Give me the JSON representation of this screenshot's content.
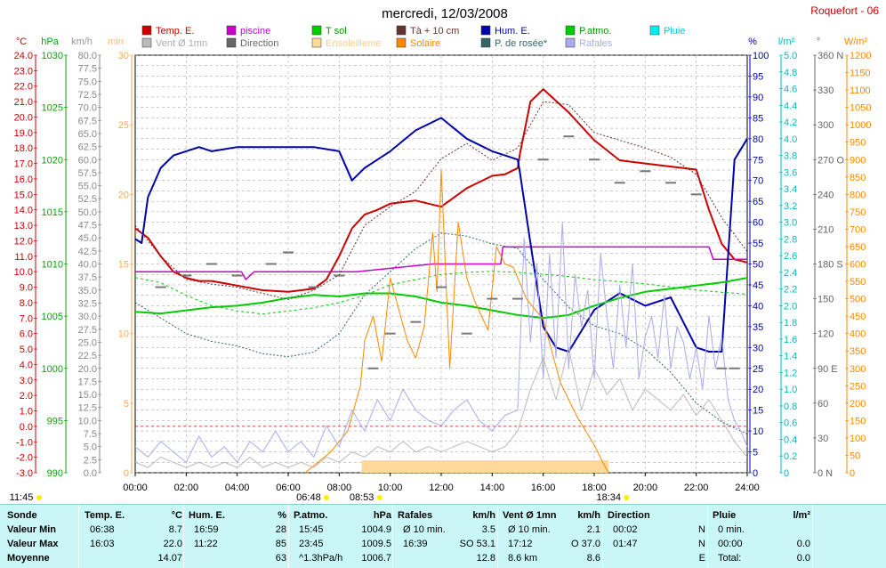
{
  "title": "mercredi, 12/03/2008",
  "station": "Roquefort - 06",
  "legend": [
    {
      "label": "Temp. E.",
      "color": "#cc0000"
    },
    {
      "label": "piscine",
      "color": "#cc00cc"
    },
    {
      "label": "T sol",
      "color": "#00cc00"
    },
    {
      "label": "Tà + 10 cm",
      "color": "#663333"
    },
    {
      "label": "Hum. E.",
      "color": "#0000aa"
    },
    {
      "label": "P.atmo.",
      "color": "#00cc00"
    },
    {
      "label": "Pluie",
      "color": "#00eeee"
    },
    {
      "label": "Vent Ø 1mn",
      "color": "#bbbbbb"
    },
    {
      "label": "Direction",
      "color": "#666666"
    },
    {
      "label": "Ensoleilleme",
      "color": "#ffd89a"
    },
    {
      "label": "Solaire",
      "color": "#ff8800"
    },
    {
      "label": "P. de rosée*",
      "color": "#336666"
    },
    {
      "label": "Rafales",
      "color": "#aaaaee"
    }
  ],
  "units": {
    "temp": "°C",
    "press": "hPa",
    "wind": "km/h",
    "sun": "min",
    "hum": "%",
    "rain": "l/m²",
    "dir": "°",
    "solar": "W/m²"
  },
  "chart_data": {
    "type": "line",
    "x_ticks": [
      "00:00",
      "02:00",
      "04:00",
      "06:00",
      "08:00",
      "10:00",
      "12:00",
      "14:00",
      "16:00",
      "18:00",
      "20:00",
      "22:00",
      "24:00"
    ],
    "axes": {
      "temp": {
        "min": -3.0,
        "max": 24.0,
        "step": 1.0,
        "color": "#cc0000"
      },
      "press": {
        "min": 990,
        "max": 1030,
        "step": 5,
        "color": "#00aa00"
      },
      "wind": {
        "min": 0,
        "max": 80,
        "step": 2.5,
        "color": "#888888"
      },
      "sun": {
        "min": 0,
        "max": 30,
        "step": 5,
        "color": "#ffaa44"
      },
      "hum": {
        "min": 0,
        "max": 100,
        "step": 5,
        "color": "#0000aa"
      },
      "rain": {
        "min": 0,
        "max": 5.0,
        "step": 0.2,
        "color": "#00bbbb"
      },
      "dir": {
        "min": 0,
        "max": 360,
        "step": 30,
        "color": "#666666",
        "labels": {
          "0": "0 N",
          "90": "90 E",
          "180": "180 S",
          "270": "270 O",
          "360": "360 N"
        }
      },
      "solar": {
        "min": 0,
        "max": 1200,
        "step": 50,
        "color": "#ff8800"
      }
    },
    "bottom_labels": [
      {
        "time": "11:45",
        "minute": -15
      },
      {
        "time": "06:48",
        "minute": 408
      },
      {
        "time": "08:53",
        "minute": 533
      },
      {
        "time": "18:34",
        "minute": 1114
      }
    ],
    "series": [
      {
        "name": "Temp. E.",
        "axis": "temp",
        "color": "#cc0000",
        "width": 2,
        "x": [
          0,
          30,
          60,
          90,
          120,
          150,
          180,
          240,
          300,
          360,
          420,
          450,
          480,
          510,
          540,
          570,
          600,
          660,
          720,
          780,
          840,
          870,
          900,
          905,
          930,
          960,
          1020,
          1080,
          1140,
          1200,
          1260,
          1320,
          1350,
          1380,
          1410,
          1440
        ],
        "y": [
          12.8,
          12.2,
          11.0,
          10.0,
          9.6,
          9.4,
          9.4,
          9.1,
          8.8,
          8.7,
          8.9,
          9.5,
          11.0,
          12.8,
          13.7,
          14.0,
          14.4,
          14.6,
          14.2,
          15.4,
          16.2,
          16.3,
          16.7,
          17.6,
          21.0,
          21.8,
          20.3,
          18.5,
          17.2,
          17.0,
          16.8,
          16.6,
          14.0,
          11.8,
          10.8,
          10.6
        ]
      },
      {
        "name": "piscine",
        "axis": "temp",
        "color": "#cc00cc",
        "width": 1.5,
        "x": [
          0,
          250,
          260,
          280,
          520,
          700,
          860,
          865,
          1000,
          1080,
          1350,
          1360,
          1440
        ],
        "y": [
          10.0,
          10.0,
          9.5,
          10.0,
          10.0,
          10.5,
          10.5,
          11.6,
          11.6,
          11.6,
          11.6,
          10.8,
          10.8
        ]
      },
      {
        "name": "Hum. E.",
        "axis": "hum",
        "color": "#0000aa",
        "width": 2,
        "x": [
          0,
          15,
          30,
          60,
          90,
          120,
          150,
          180,
          240,
          300,
          360,
          420,
          480,
          510,
          540,
          570,
          600,
          660,
          720,
          780,
          840,
          870,
          900,
          905,
          930,
          960,
          990,
          1020,
          1080,
          1140,
          1200,
          1260,
          1320,
          1350,
          1380,
          1410,
          1440
        ],
        "y": [
          56,
          55,
          66,
          73,
          76,
          77,
          78,
          77,
          78,
          78,
          78,
          78,
          77,
          70,
          73,
          75,
          77,
          82,
          85,
          80,
          77,
          76,
          75,
          72,
          55,
          35,
          30,
          29,
          39,
          43,
          40,
          42,
          30,
          29,
          29,
          75,
          80
        ]
      },
      {
        "name": "T sol",
        "axis": "temp",
        "color": "#00cc00",
        "width": 2,
        "x": [
          0,
          60,
          120,
          180,
          240,
          300,
          360,
          420,
          480,
          540,
          600,
          660,
          720,
          780,
          840,
          900,
          960,
          1020,
          1080,
          1140,
          1200,
          1260,
          1320,
          1380,
          1440
        ],
        "y": [
          7.4,
          7.3,
          7.5,
          7.7,
          7.8,
          8.0,
          8.3,
          8.5,
          8.4,
          8.6,
          8.6,
          8.4,
          8.0,
          7.8,
          7.5,
          7.2,
          7.0,
          7.2,
          7.8,
          8.3,
          8.7,
          8.9,
          9.1,
          9.3,
          9.6
        ]
      },
      {
        "name": "Tà + 10 cm",
        "axis": "temp",
        "color": "#663333",
        "width": 1,
        "dash": "2,2",
        "x": [
          0,
          60,
          120,
          180,
          240,
          300,
          360,
          420,
          480,
          540,
          600,
          660,
          720,
          780,
          840,
          900,
          960,
          1020,
          1080,
          1140,
          1200,
          1260,
          1320,
          1380,
          1440
        ],
        "y": [
          13.0,
          11.0,
          9.5,
          9.2,
          9.0,
          8.6,
          8.2,
          8.8,
          9.8,
          13.0,
          14.2,
          15.2,
          17.3,
          18.3,
          17.2,
          18.0,
          21.0,
          20.8,
          19.0,
          18.5,
          18.0,
          17.4,
          16.3,
          13.5,
          11.3
        ]
      },
      {
        "name": "P. de rosée*",
        "axis": "temp",
        "color": "#336666",
        "width": 1,
        "dash": "2,2",
        "x": [
          0,
          60,
          120,
          180,
          240,
          300,
          360,
          420,
          480,
          540,
          600,
          660,
          720,
          780,
          840,
          900,
          960,
          1020,
          1080,
          1140,
          1200,
          1260,
          1320,
          1380,
          1440
        ],
        "y": [
          8.0,
          7.0,
          6.0,
          5.5,
          5.2,
          4.7,
          4.5,
          4.8,
          6.0,
          8.5,
          10.0,
          11.5,
          12.5,
          12.3,
          11.8,
          11.5,
          9.5,
          7.7,
          6.5,
          6.0,
          5.0,
          3.5,
          1.5,
          0.3,
          -0.5
        ]
      },
      {
        "name": "P.atmo.",
        "axis": "press",
        "color": "#00cc00",
        "width": 1,
        "dash": "3,3",
        "x": [
          0,
          60,
          120,
          180,
          240,
          300,
          360,
          420,
          480,
          540,
          600,
          660,
          720,
          780,
          840,
          900,
          960,
          1020,
          1080,
          1140,
          1200,
          1260,
          1320,
          1380,
          1440
        ],
        "y": [
          1008.7,
          1008.2,
          1007.0,
          1006.0,
          1005.5,
          1005.2,
          1005.5,
          1005.8,
          1006.3,
          1007.0,
          1008.0,
          1008.5,
          1009.0,
          1009.2,
          1009.3,
          1009.2,
          1009.0,
          1008.8,
          1008.5,
          1008.3,
          1008.1,
          1007.8,
          1007.5,
          1007.3,
          1007.1
        ]
      },
      {
        "name": "Solaire",
        "axis": "solar",
        "color": "#ff8800",
        "width": 1,
        "x": [
          400,
          420,
          460,
          500,
          530,
          540,
          560,
          580,
          600,
          620,
          640,
          660,
          680,
          700,
          710,
          720,
          740,
          760,
          780,
          800,
          830,
          850,
          870,
          890,
          920,
          960,
          1000,
          1040,
          1080,
          1100,
          1114
        ],
        "y": [
          0,
          20,
          60,
          120,
          250,
          380,
          450,
          320,
          560,
          470,
          380,
          330,
          420,
          690,
          520,
          870,
          300,
          720,
          560,
          490,
          410,
          650,
          600,
          590,
          500,
          440,
          260,
          160,
          80,
          30,
          0
        ]
      },
      {
        "name": "Rafales",
        "axis": "wind",
        "color": "#aaaaee",
        "width": 1,
        "x": [
          0,
          30,
          60,
          90,
          120,
          150,
          180,
          210,
          240,
          270,
          300,
          330,
          360,
          390,
          420,
          450,
          480,
          510,
          540,
          570,
          600,
          630,
          660,
          690,
          720,
          750,
          780,
          810,
          840,
          870,
          900,
          915,
          930,
          945,
          960,
          975,
          990,
          1005,
          1020,
          1035,
          1050,
          1065,
          1080,
          1095,
          1110,
          1125,
          1140,
          1155,
          1170,
          1185,
          1200,
          1215,
          1230,
          1245,
          1260,
          1275,
          1290,
          1305,
          1320,
          1335,
          1350,
          1365,
          1380,
          1395,
          1410,
          1425,
          1440
        ],
        "y": [
          5,
          3,
          6,
          4,
          2,
          7,
          3,
          5,
          2,
          6,
          4,
          8,
          4,
          6,
          3,
          9,
          5,
          12,
          8,
          14,
          10,
          16,
          12,
          10,
          9,
          12,
          14,
          10,
          8,
          11,
          12,
          45,
          25,
          40,
          18,
          42,
          22,
          48,
          20,
          38,
          28,
          35,
          18,
          42,
          30,
          20,
          36,
          24,
          40,
          18,
          26,
          30,
          22,
          34,
          20,
          28,
          25,
          18,
          24,
          16,
          30,
          20,
          26,
          14,
          10,
          8,
          5
        ]
      },
      {
        "name": "Vent Ø 1mn",
        "axis": "wind",
        "color": "#bbbbbb",
        "width": 1,
        "x": [
          0,
          30,
          60,
          90,
          120,
          150,
          180,
          210,
          240,
          270,
          300,
          330,
          360,
          390,
          420,
          450,
          480,
          510,
          540,
          570,
          600,
          630,
          660,
          690,
          720,
          750,
          780,
          810,
          840,
          870,
          900,
          930,
          960,
          990,
          1020,
          1050,
          1080,
          1110,
          1140,
          1170,
          1200,
          1230,
          1260,
          1290,
          1320,
          1350,
          1380,
          1410,
          1440
        ],
        "y": [
          2,
          1,
          3,
          2,
          1,
          2,
          1,
          2,
          1,
          3,
          1,
          2,
          1,
          2,
          1,
          3,
          2,
          4,
          3,
          5,
          4,
          6,
          4,
          5,
          4,
          5,
          6,
          5,
          4,
          5,
          8,
          16,
          22,
          14,
          24,
          12,
          20,
          15,
          18,
          12,
          16,
          14,
          12,
          15,
          11,
          14,
          10,
          6,
          3
        ]
      }
    ],
    "rain_bars": {
      "axis": "rain",
      "color": "#ffd89a",
      "sun_axis": "sun",
      "intervals": [
        [
          533,
          1114
        ]
      ],
      "level": 0.04
    },
    "wind_dir_dots": [
      {
        "x": 60,
        "y": 160
      },
      {
        "x": 120,
        "y": 170
      },
      {
        "x": 180,
        "y": 180
      },
      {
        "x": 240,
        "y": 170
      },
      {
        "x": 320,
        "y": 180
      },
      {
        "x": 360,
        "y": 190
      },
      {
        "x": 420,
        "y": 160
      },
      {
        "x": 480,
        "y": 170
      },
      {
        "x": 560,
        "y": 90
      },
      {
        "x": 600,
        "y": 120
      },
      {
        "x": 660,
        "y": 130
      },
      {
        "x": 720,
        "y": 160
      },
      {
        "x": 780,
        "y": 120
      },
      {
        "x": 840,
        "y": 150
      },
      {
        "x": 900,
        "y": 150
      },
      {
        "x": 960,
        "y": 270
      },
      {
        "x": 1020,
        "y": 290
      },
      {
        "x": 1080,
        "y": 270
      },
      {
        "x": 1140,
        "y": 250
      },
      {
        "x": 1200,
        "y": 260
      },
      {
        "x": 1260,
        "y": 250
      },
      {
        "x": 1320,
        "y": 240
      },
      {
        "x": 1380,
        "y": 90
      },
      {
        "x": 1410,
        "y": 90
      }
    ]
  },
  "table": {
    "rows": [
      "Sonde",
      "Valeur Min",
      "Valeur Max",
      "Moyenne"
    ],
    "columns": [
      {
        "head": "Temp. E.",
        "unit": "°C",
        "min_time": "06:38",
        "min_val": "8.7",
        "max_time": "16:03",
        "max_val": "22.0",
        "avg_label": "",
        "avg_val": "14.07"
      },
      {
        "head": "Hum. E.",
        "unit": "%",
        "min_time": "16:59",
        "min_val": "28",
        "max_time": "11:22",
        "max_val": "85",
        "avg_label": "",
        "avg_val": "63"
      },
      {
        "head": "P.atmo.",
        "unit": "hPa",
        "min_time": "15:45",
        "min_val": "1004.9",
        "max_time": "23:45",
        "max_val": "1009.5",
        "avg_label": "^1.3hPa/h",
        "avg_val": "1006.7"
      },
      {
        "head": "Rafales",
        "unit": "km/h",
        "min_time": "Ø 10 min.",
        "min_val": "3.5",
        "max_time": "16:39",
        "max_val": "SO 53.1",
        "avg_label": "",
        "avg_val": "12.8"
      },
      {
        "head": "Vent Ø 1mn",
        "unit": "km/h",
        "min_time": "Ø 10 min.",
        "min_val": "2.1",
        "max_time": "17:12",
        "max_val": "O 37.0",
        "avg_label": "8.6 km",
        "avg_val": "8.6"
      },
      {
        "head": "Direction",
        "unit": "",
        "min_time": "00:02",
        "min_val": "N",
        "max_time": "01:47",
        "max_val": "N",
        "avg_label": "",
        "avg_val": "E"
      },
      {
        "head": "Pluie",
        "unit": "l/m²",
        "min_time": "0 min.",
        "min_val": "",
        "max_time": "00:00",
        "max_val": "0.0",
        "avg_label": "Total:",
        "avg_val": "0.0"
      }
    ]
  }
}
